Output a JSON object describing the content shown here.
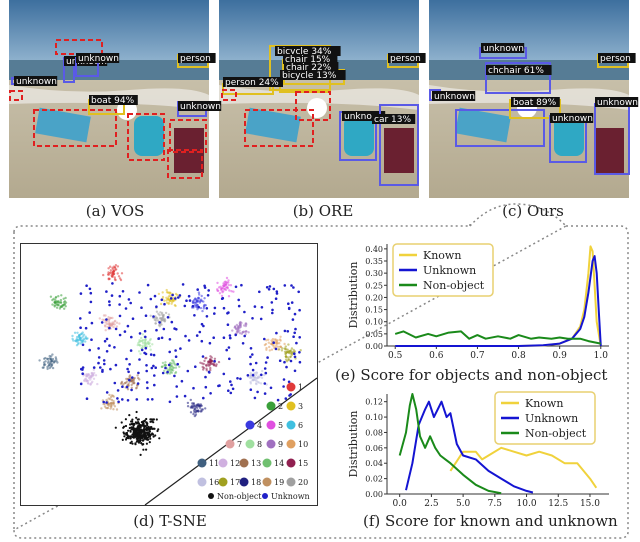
{
  "panels": {
    "a": {
      "caption": "(a) VOS",
      "labels": [
        "unknown",
        "unknown",
        "unknown",
        "person",
        "unknown",
        "boat 94%",
        "unknown"
      ]
    },
    "b": {
      "caption": "(b) ORE",
      "labels": [
        "bicycle 34%",
        "chair 15%",
        "chair 22%",
        "bicycle 13%",
        "unknown",
        "person 24%",
        "person",
        "unknown",
        "car 13%"
      ]
    },
    "c": {
      "caption": "(c) Ours",
      "labels": [
        "unknown",
        "unknown",
        "chchair 61%",
        "person",
        "unknown",
        "boat 89%",
        "unknown",
        "unknown"
      ]
    },
    "d": {
      "caption": "(d) T-SNE",
      "legend": [
        "1",
        "2",
        "3",
        "4",
        "5",
        "6",
        "7",
        "8",
        "9",
        "10",
        "11",
        "12",
        "13",
        "14",
        "15",
        "16",
        "17",
        "18",
        "19",
        "20",
        "Non-object",
        "Unknown"
      ]
    },
    "e": {
      "caption": "(e) Score for objects and non-object"
    },
    "f": {
      "caption": "(f) Score for known and unknown"
    }
  },
  "colors": {
    "known": "#f0d23c",
    "unknown": "#1414d2",
    "nonobject": "#1a8a1a",
    "vos_box": "#e02020",
    "ours_box": "#5a5ae6",
    "ore_box": "#e03030",
    "classes": [
      "#e03a3a",
      "#3aa03a",
      "#e0c020",
      "#3a3ae0",
      "#e050e0",
      "#40c0e0",
      "#e0a0a0",
      "#a0e0a0",
      "#a070c0",
      "#e0a060",
      "#406080",
      "#d0b0e0",
      "#a07050",
      "#70c070",
      "#902050",
      "#c0c0e0",
      "#a0a020",
      "#202080",
      "#c09060",
      "#a0a0a0"
    ]
  },
  "chart_data": [
    {
      "type": "line",
      "title": "",
      "xlabel": "",
      "ylabel": "Distribution",
      "xlim": [
        0.48,
        1.02
      ],
      "ylim": [
        0,
        0.42
      ],
      "xticks": [
        "0.5",
        "0.6",
        "0.7",
        "0.8",
        "0.9",
        "1.0"
      ],
      "yticks": [
        "0.00",
        "0.05",
        "0.10",
        "0.15",
        "0.20",
        "0.25",
        "0.30",
        "0.35",
        "0.40"
      ],
      "legend": "top-left",
      "series": [
        {
          "name": "Known",
          "color": "#f0d23c",
          "x": [
            0.5,
            0.6,
            0.7,
            0.8,
            0.86,
            0.9,
            0.93,
            0.95,
            0.96,
            0.97,
            0.975,
            0.98,
            0.985,
            0.99,
            1.0
          ],
          "y": [
            0,
            0,
            0,
            0,
            0.002,
            0.01,
            0.03,
            0.08,
            0.15,
            0.3,
            0.41,
            0.39,
            0.25,
            0.1,
            0.0
          ]
        },
        {
          "name": "Unknown",
          "color": "#1414d2",
          "x": [
            0.5,
            0.6,
            0.7,
            0.8,
            0.86,
            0.9,
            0.93,
            0.95,
            0.96,
            0.97,
            0.98,
            0.985,
            0.99,
            0.995,
            1.0
          ],
          "y": [
            0,
            0,
            0,
            0,
            0.003,
            0.01,
            0.03,
            0.07,
            0.12,
            0.22,
            0.35,
            0.37,
            0.3,
            0.15,
            0.0
          ]
        },
        {
          "name": "Non-object",
          "color": "#1a8a1a",
          "x": [
            0.5,
            0.52,
            0.55,
            0.58,
            0.6,
            0.63,
            0.66,
            0.68,
            0.7,
            0.72,
            0.75,
            0.78,
            0.8,
            0.83,
            0.85,
            0.88,
            0.9,
            0.92,
            0.95,
            0.97,
            1.0
          ],
          "y": [
            0.05,
            0.06,
            0.035,
            0.05,
            0.04,
            0.055,
            0.06,
            0.03,
            0.045,
            0.03,
            0.04,
            0.03,
            0.045,
            0.03,
            0.035,
            0.03,
            0.035,
            0.03,
            0.03,
            0.02,
            0.01
          ]
        }
      ]
    },
    {
      "type": "line",
      "title": "",
      "xlabel": "",
      "ylabel": "Distribution",
      "xlim": [
        -1,
        16.5
      ],
      "ylim": [
        0,
        0.13
      ],
      "xticks": [
        "0.0",
        "2.5",
        "5.0",
        "7.5",
        "10.0",
        "12.5",
        "15.0"
      ],
      "yticks": [
        "0.00",
        "0.02",
        "0.04",
        "0.06",
        "0.08",
        "0.10",
        "0.12"
      ],
      "legend": "top-right",
      "series": [
        {
          "name": "Known",
          "color": "#f0d23c",
          "x": [
            4,
            5,
            6,
            6.5,
            7,
            8,
            9,
            10,
            11,
            12,
            13,
            14,
            15,
            15.5
          ],
          "y": [
            0.03,
            0.055,
            0.055,
            0.045,
            0.05,
            0.06,
            0.055,
            0.05,
            0.055,
            0.05,
            0.04,
            0.04,
            0.02,
            0.008
          ]
        },
        {
          "name": "Unknown",
          "color": "#1414d2",
          "x": [
            0.5,
            1,
            1.5,
            2,
            2.3,
            2.7,
            3,
            3.3,
            3.7,
            4,
            4.5,
            5,
            6,
            7,
            8,
            9,
            10,
            10.5
          ],
          "y": [
            0.005,
            0.04,
            0.09,
            0.11,
            0.12,
            0.1,
            0.11,
            0.12,
            0.1,
            0.105,
            0.065,
            0.05,
            0.045,
            0.03,
            0.02,
            0.01,
            0.004,
            0.002
          ]
        },
        {
          "name": "Non-object",
          "color": "#1a8a1a",
          "x": [
            0,
            0.5,
            0.8,
            1,
            1.3,
            1.6,
            2,
            2.4,
            2.8,
            3.2,
            3.6,
            4,
            5,
            6,
            7,
            8
          ],
          "y": [
            0.05,
            0.08,
            0.115,
            0.13,
            0.11,
            0.075,
            0.06,
            0.075,
            0.06,
            0.05,
            0.045,
            0.04,
            0.025,
            0.012,
            0.004,
            0.001
          ]
        }
      ]
    }
  ]
}
